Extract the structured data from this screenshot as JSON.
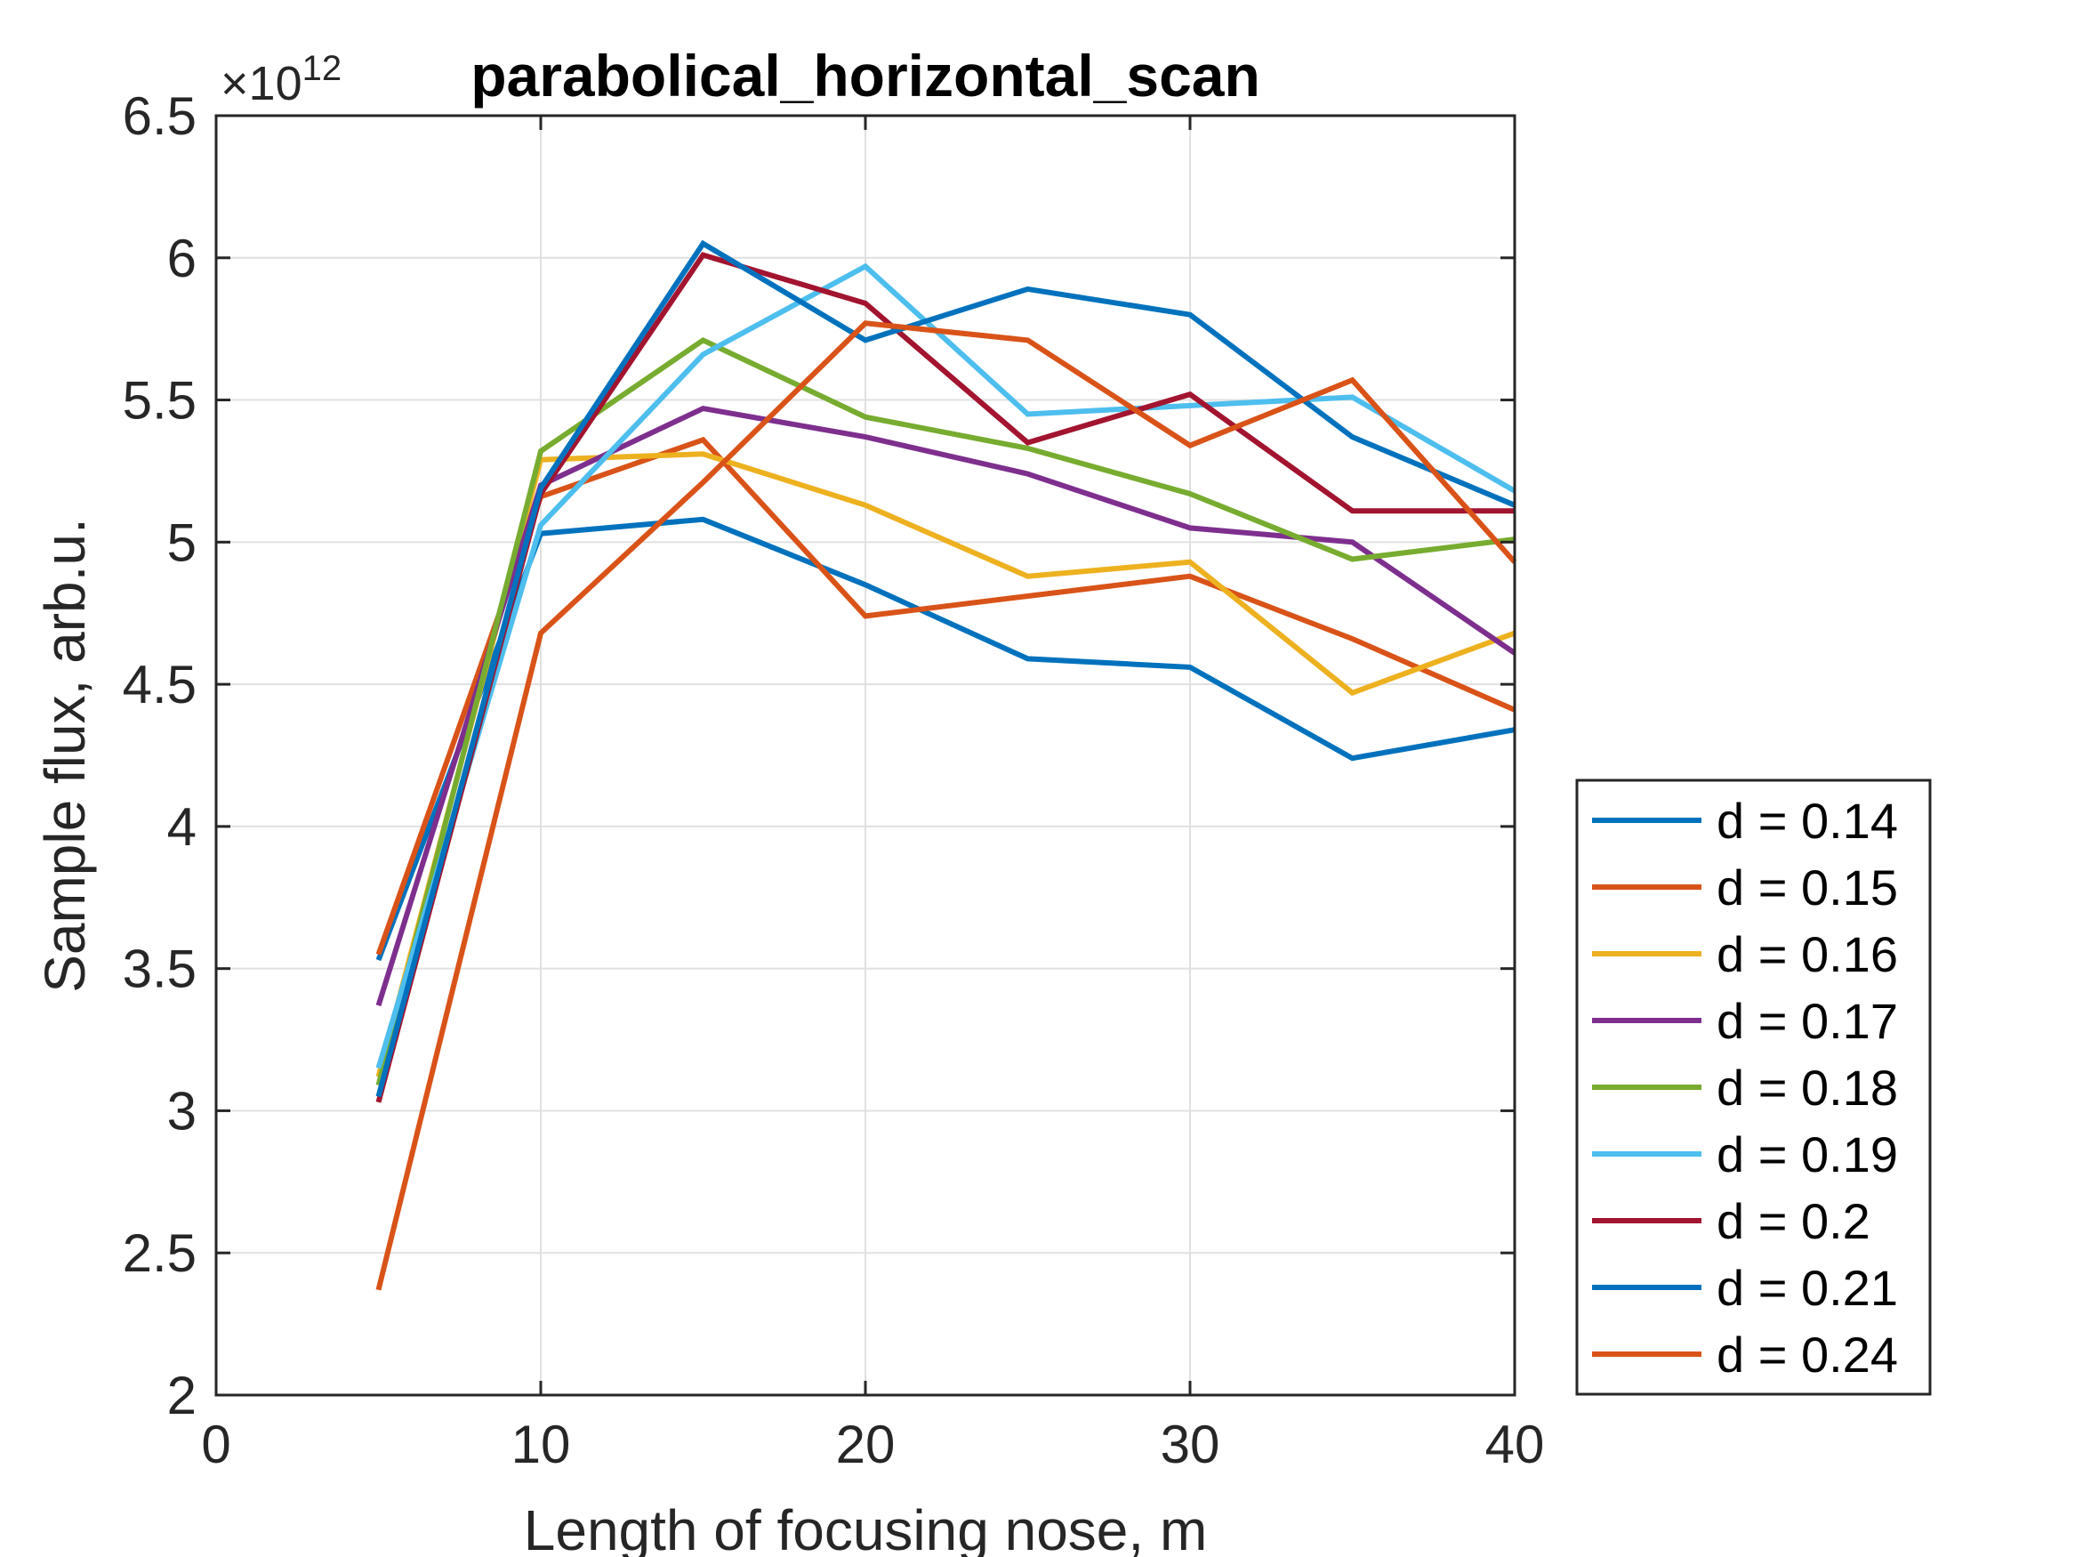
{
  "chart_data": {
    "type": "line",
    "title": "parabolical_horizontal_scan",
    "xlabel": "Length of focusing nose, m",
    "ylabel": "Sample flux, arb.u.",
    "xlim": [
      0,
      40
    ],
    "ylim": [
      2,
      6.5
    ],
    "x_ticks": [
      0,
      10,
      20,
      30,
      40
    ],
    "y_ticks": [
      2,
      2.5,
      3,
      3.5,
      4,
      4.5,
      5,
      5.5,
      6,
      6.5
    ],
    "y_exponent_base": "×10",
    "y_exponent_power": "12",
    "grid": true,
    "legend_position": "outside-right-bottom",
    "x": [
      5,
      10,
      15,
      20,
      25,
      30,
      35,
      40
    ],
    "series": [
      {
        "name": "d = 0.14",
        "color": "#0072BD",
        "values": [
          3.53,
          5.03,
          5.08,
          4.85,
          4.59,
          4.56,
          4.24,
          4.34
        ]
      },
      {
        "name": "d = 0.15",
        "color": "#D95319",
        "values": [
          3.55,
          5.16,
          5.36,
          4.74,
          4.81,
          4.88,
          4.66,
          4.41
        ]
      },
      {
        "name": "d = 0.16",
        "color": "#EDB120",
        "values": [
          3.12,
          5.29,
          5.31,
          5.13,
          4.88,
          4.93,
          4.47,
          4.68
        ]
      },
      {
        "name": "d = 0.17",
        "color": "#7E2F8E",
        "values": [
          3.37,
          5.2,
          5.47,
          5.37,
          5.24,
          5.05,
          5.0,
          4.61
        ]
      },
      {
        "name": "d = 0.18",
        "color": "#77AC30",
        "values": [
          3.09,
          5.32,
          5.71,
          5.44,
          5.33,
          5.17,
          4.94,
          5.01
        ]
      },
      {
        "name": "d = 0.19",
        "color": "#4DBEEE",
        "values": [
          3.15,
          5.06,
          5.66,
          5.97,
          5.45,
          5.48,
          5.51,
          5.18
        ]
      },
      {
        "name": "d = 0.2",
        "color": "#A2142F",
        "values": [
          3.03,
          5.17,
          6.01,
          5.84,
          5.35,
          5.52,
          5.11,
          5.11
        ]
      },
      {
        "name": "d = 0.21",
        "color": "#0072BD",
        "values": [
          3.05,
          5.19,
          6.05,
          5.71,
          5.89,
          5.8,
          5.37,
          5.13
        ]
      },
      {
        "name": "d = 0.24",
        "color": "#D95319",
        "values": [
          2.37,
          4.68,
          5.21,
          5.77,
          5.71,
          5.34,
          5.57,
          4.93
        ]
      }
    ]
  }
}
